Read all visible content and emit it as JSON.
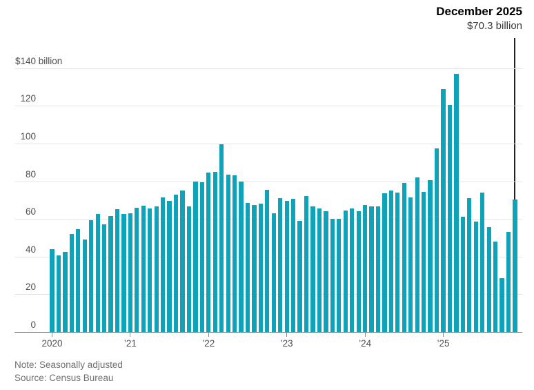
{
  "annotation": {
    "title": "December 2025",
    "value": "$70.3 billion"
  },
  "footer": {
    "note": "Note: Seasonally adjusted",
    "source": "Source: Census Bureau"
  },
  "colors": {
    "bar": "#0fa3ba",
    "gridline": "#e5e5e5",
    "axis": "#8a8a8a",
    "tick": "#8a8a8a",
    "callout": "#222222"
  },
  "chart_data": {
    "type": "bar",
    "title": "",
    "y_axis": {
      "top_label": "$140 billion",
      "tick_values": [
        0,
        20,
        40,
        60,
        80,
        100,
        120,
        140
      ],
      "ylim": [
        0,
        140
      ],
      "grid": "horizontal"
    },
    "x_axis": {
      "tick_labels": [
        "2020",
        "’21",
        "’22",
        "’23",
        "’24",
        "’25"
      ],
      "ticks_every_months": 12
    },
    "highlight": {
      "month": "2025-12",
      "label": "December 2025",
      "value": 70.3,
      "value_label": "$70.3 billion"
    },
    "months": [
      "2020-01",
      "2020-02",
      "2020-03",
      "2020-04",
      "2020-05",
      "2020-06",
      "2020-07",
      "2020-08",
      "2020-09",
      "2020-10",
      "2020-11",
      "2020-12",
      "2021-01",
      "2021-02",
      "2021-03",
      "2021-04",
      "2021-05",
      "2021-06",
      "2021-07",
      "2021-08",
      "2021-09",
      "2021-10",
      "2021-11",
      "2021-12",
      "2022-01",
      "2022-02",
      "2022-03",
      "2022-04",
      "2022-05",
      "2022-06",
      "2022-07",
      "2022-08",
      "2022-09",
      "2022-10",
      "2022-11",
      "2022-12",
      "2023-01",
      "2023-02",
      "2023-03",
      "2023-04",
      "2023-05",
      "2023-06",
      "2023-07",
      "2023-08",
      "2023-09",
      "2023-10",
      "2023-11",
      "2023-12",
      "2024-01",
      "2024-02",
      "2024-03",
      "2024-04",
      "2024-05",
      "2024-06",
      "2024-07",
      "2024-08",
      "2024-09",
      "2024-10",
      "2024-11",
      "2024-12",
      "2025-01",
      "2025-02",
      "2025-03",
      "2025-04",
      "2025-05",
      "2025-06",
      "2025-07",
      "2025-08",
      "2025-09",
      "2025-10",
      "2025-11",
      "2025-12"
    ],
    "values": [
      44,
      40.5,
      42.5,
      52,
      54.5,
      49,
      59.5,
      62.5,
      57,
      61.5,
      65,
      62.5,
      63,
      66,
      67,
      65.5,
      66.5,
      71.5,
      69.5,
      73,
      75,
      66.5,
      80,
      79.5,
      84.5,
      85,
      99.5,
      83.5,
      83,
      80,
      68.5,
      67.5,
      68,
      75.5,
      63,
      71,
      69.5,
      70.5,
      59,
      72,
      66.5,
      65.5,
      64,
      60,
      60,
      64.5,
      65.5,
      64,
      67.5,
      66.5,
      66.5,
      73.5,
      75,
      74,
      79,
      71.5,
      82,
      74.5,
      80.5,
      97.5,
      129,
      120.5,
      137,
      61,
      71,
      58.5,
      74,
      55.5,
      48,
      28.5,
      53,
      70.3
    ]
  }
}
